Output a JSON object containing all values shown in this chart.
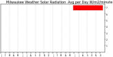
{
  "title": "Milwaukee Weather Solar Radiation  Avg per Day W/m2/minute",
  "title_fontsize": 3.5,
  "bg_color": "#ffffff",
  "plot_bg_color": "#ffffff",
  "scatter_color1": "#000000",
  "scatter_color2": "#ff0000",
  "ylim": [
    0,
    750
  ],
  "ytick_values": [
    100,
    200,
    300,
    400,
    500,
    600,
    700
  ],
  "ytick_labels": [
    "1",
    "2",
    "3",
    "4",
    "5",
    "6",
    "7"
  ],
  "num_points": 730,
  "seed": 7,
  "vline_color": "#cccccc",
  "vline_positions": [
    61,
    120,
    181,
    243,
    304,
    365,
    425,
    486,
    547,
    608,
    669
  ],
  "legend_box_color": "#ff0000",
  "legend_bg": "#ff0000"
}
